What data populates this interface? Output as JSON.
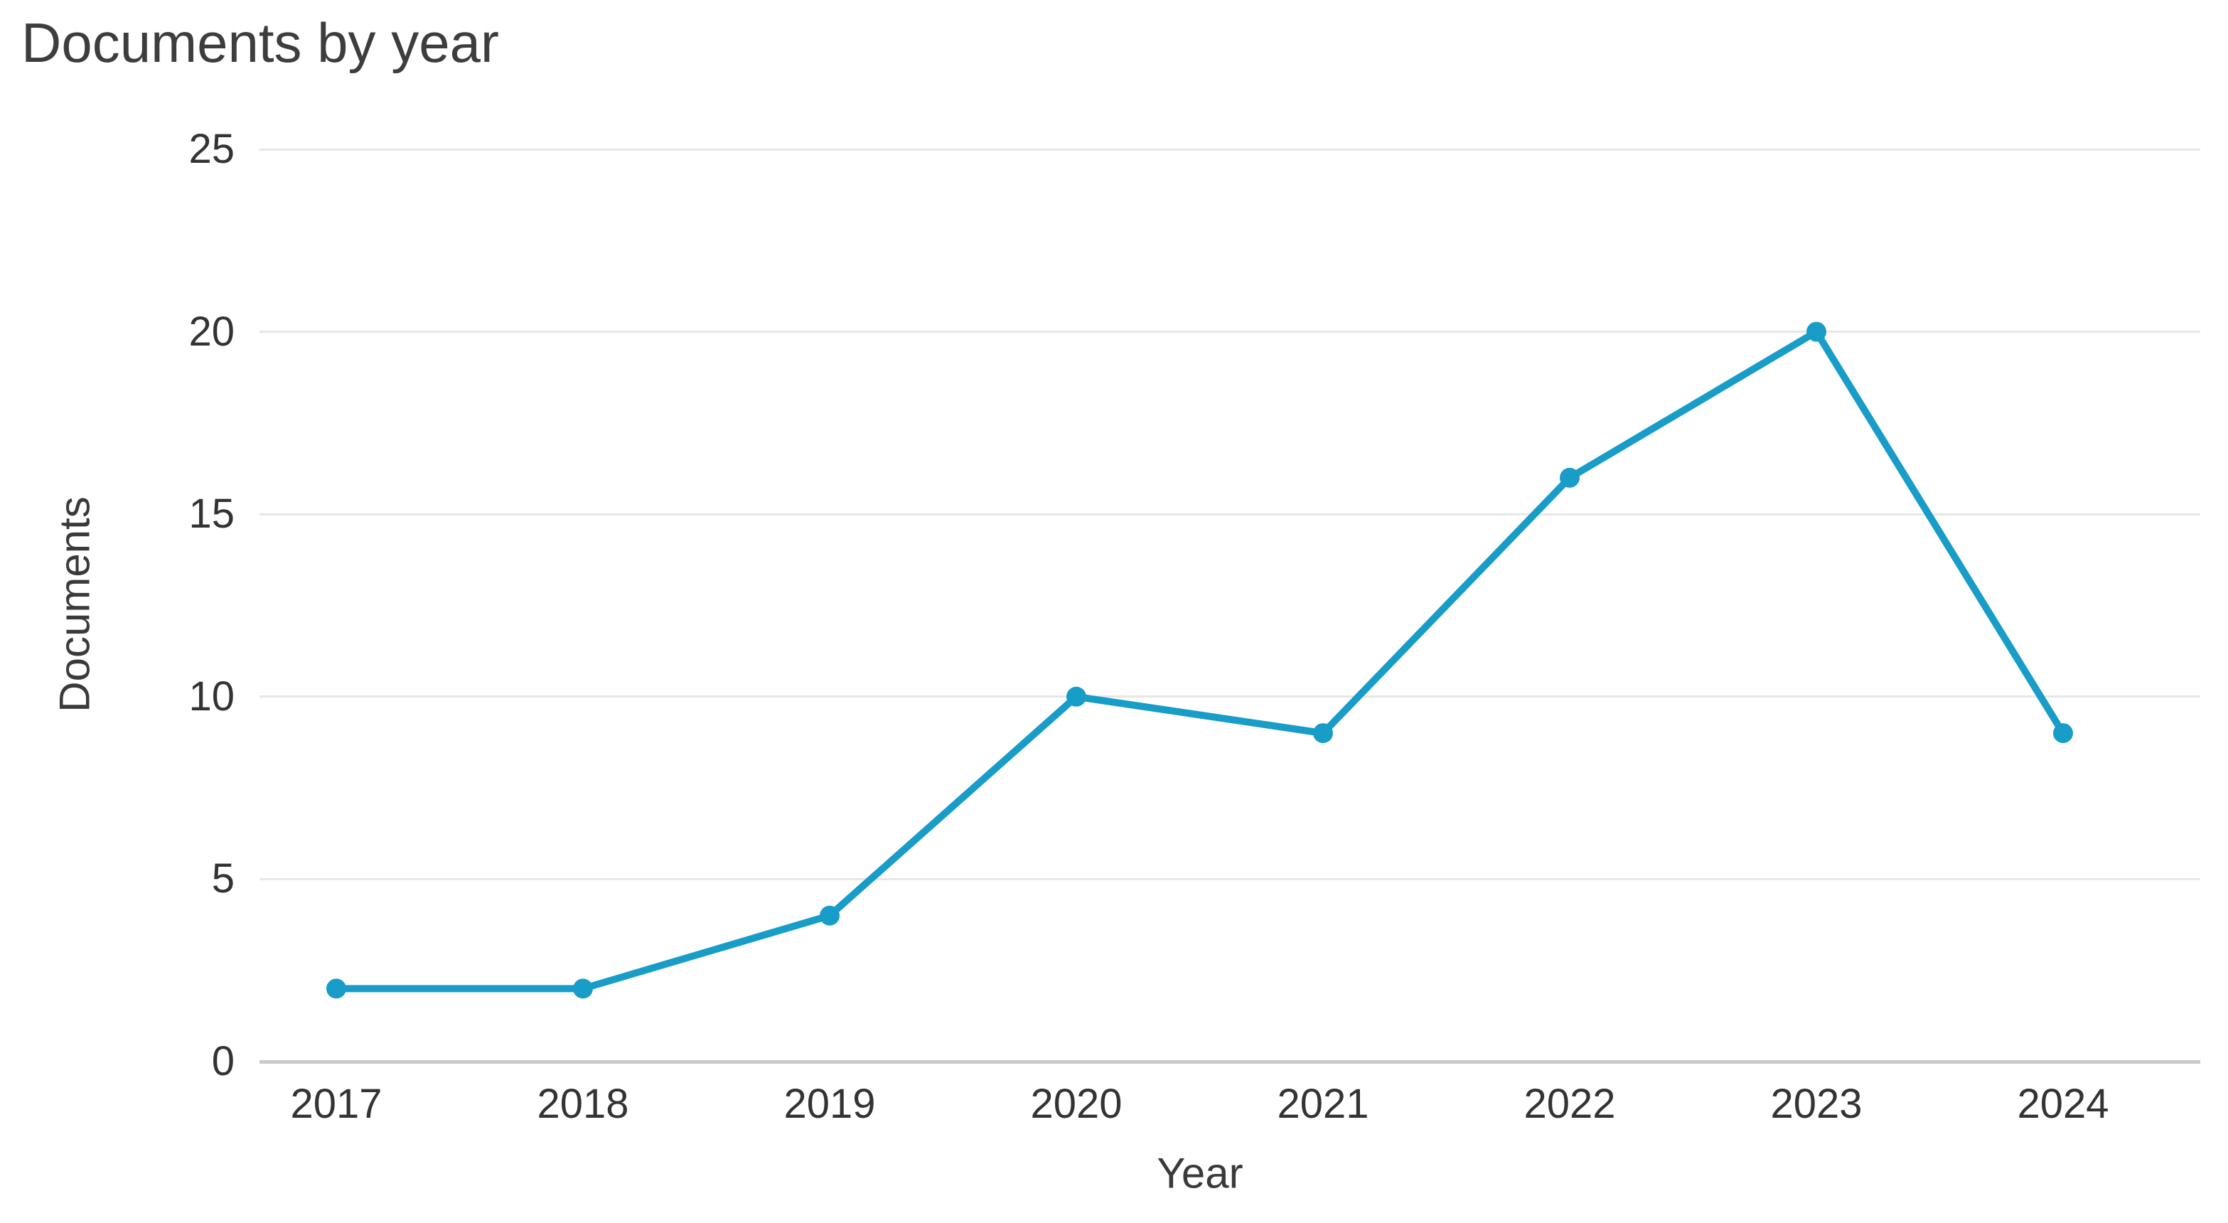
{
  "chart_data": {
    "type": "line",
    "title": "Documents by year",
    "xlabel": "Year",
    "ylabel": "Documents",
    "categories": [
      "2017",
      "2018",
      "2019",
      "2020",
      "2021",
      "2022",
      "2023",
      "2024"
    ],
    "series": [
      {
        "name": "Documents",
        "values": [
          2,
          2,
          4,
          10,
          9,
          16,
          20,
          9
        ]
      }
    ],
    "ylim": [
      0,
      25
    ],
    "yticks": [
      0,
      5,
      10,
      15,
      20,
      25
    ],
    "grid": true,
    "legend_position": "none",
    "line_color": "#189CC8",
    "marker": "circle",
    "gridline_color": "#e7e7e7",
    "axis_line_color": "#c9c9c9",
    "text_color": "#333333",
    "background_color": "#ffffff"
  }
}
